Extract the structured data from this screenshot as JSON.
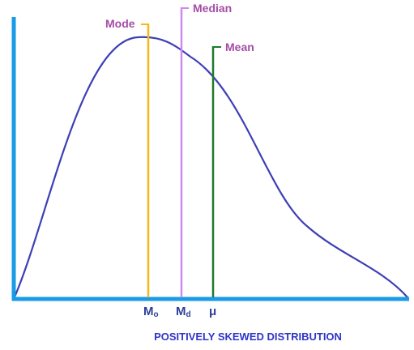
{
  "diagram": {
    "caption": "POSITIVELY SKEWED DISTRIBUTION",
    "colors": {
      "axis": "#1a9be6",
      "curve": "#3d3fb5",
      "label_text": "#a64ca6",
      "symbol_text": "#2d3f99",
      "caption_text": "#2e35c8"
    },
    "markers": {
      "mode": {
        "label": "Mode",
        "symbol_main": "M",
        "symbol_sub": "o",
        "color": "#f5b915"
      },
      "median": {
        "label": "Median",
        "symbol_main": "M",
        "symbol_sub": "d",
        "color": "#cf8af0"
      },
      "mean": {
        "label": "Mean",
        "symbol": "μ",
        "color": "#1e7a2e"
      }
    }
  }
}
